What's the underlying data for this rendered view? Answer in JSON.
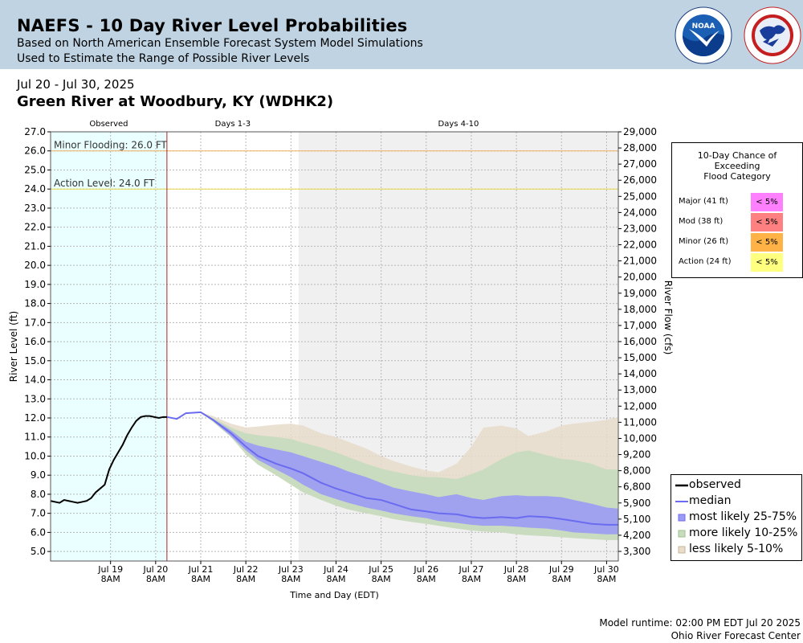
{
  "header": {
    "title": "NAEFS - 10 Day River Level Probabilities",
    "subtitle1": "Based on North American Ensemble Forecast System Model Simulations",
    "subtitle2": "Used to Estimate the Range of Possible River Levels",
    "logos": [
      "noaa-logo",
      "national-weather-service-logo"
    ]
  },
  "date_range": "Jul 20 - Jul 30, 2025",
  "station": "Green River at Woodbury, KY (WDHK2)",
  "footer": {
    "runtime": "Model runtime: 02:00 PM EDT Jul 20 2025",
    "center": "Ohio River Forecast Center"
  },
  "flood_table": {
    "title_lines": [
      "10-Day Chance of",
      "Exceeding",
      "Flood Category"
    ],
    "rows": [
      {
        "label": "Major (41 ft)",
        "value": "< 5%",
        "color": "#ff80ff"
      },
      {
        "label": "Mod (38 ft)",
        "value": "< 5%",
        "color": "#ff8080"
      },
      {
        "label": "Minor (26 ft)",
        "value": "< 5%",
        "color": "#ffb347"
      },
      {
        "label": "Action (24 ft)",
        "value": "< 5%",
        "color": "#ffff80"
      }
    ]
  },
  "legend": {
    "observed": "observed",
    "median": "median",
    "band_25_75": "most likely 25-75%",
    "band_10_25": "more likely 10-25%",
    "band_5_10": "less likely 5-10%"
  },
  "chart_data": {
    "type": "area",
    "title": "",
    "xlabel": "Time and Day (EDT)",
    "ylabel": "River Level (ft)",
    "ylabel_right": "River Flow (cfs)",
    "ylim": [
      4.5,
      27.0
    ],
    "xlim": [
      18.0,
      30.59
    ],
    "x_unit": "day of July 2025 (fractional)",
    "yticks": [
      "5.0",
      "6.0",
      "7.0",
      "8.0",
      "9.0",
      "10.0",
      "11.0",
      "12.0",
      "13.0",
      "14.0",
      "15.0",
      "16.0",
      "17.0",
      "18.0",
      "19.0",
      "20.0",
      "21.0",
      "22.0",
      "23.0",
      "24.0",
      "25.0",
      "26.0",
      "27.0"
    ],
    "yticks_right": [
      "3,300",
      "4,200",
      "5,100",
      "5,900",
      "6,800",
      "8,000",
      "9,200",
      "10,000",
      "11,000",
      "12,000",
      "13,000",
      "14,000",
      "15,000",
      "16,000",
      "17,000",
      "18,000",
      "19,000",
      "20,000",
      "21,000",
      "22,000",
      "23,000",
      "24,000",
      "25,000",
      "26,000",
      "27,000",
      "28,000",
      "29,000"
    ],
    "xticks": [
      {
        "x": 19.33,
        "line1": "Jul 19",
        "line2": "8AM"
      },
      {
        "x": 20.33,
        "line1": "Jul 20",
        "line2": "8AM"
      },
      {
        "x": 21.33,
        "line1": "Jul 21",
        "line2": "8AM"
      },
      {
        "x": 22.33,
        "line1": "Jul 22",
        "line2": "8AM"
      },
      {
        "x": 23.33,
        "line1": "Jul 23",
        "line2": "8AM"
      },
      {
        "x": 24.33,
        "line1": "Jul 24",
        "line2": "8AM"
      },
      {
        "x": 25.33,
        "line1": "Jul 25",
        "line2": "8AM"
      },
      {
        "x": 26.33,
        "line1": "Jul 26",
        "line2": "8AM"
      },
      {
        "x": 27.33,
        "line1": "Jul 27",
        "line2": "8AM"
      },
      {
        "x": 28.33,
        "line1": "Jul 28",
        "line2": "8AM"
      },
      {
        "x": 29.33,
        "line1": "Jul 29",
        "line2": "8AM"
      },
      {
        "x": 30.33,
        "line1": "Jul 30",
        "line2": "8AM"
      }
    ],
    "regions": [
      {
        "label": "Observed",
        "x0": 18.0,
        "x1": 20.58,
        "color": "#eaffff"
      },
      {
        "label": "Days 1-3",
        "x0": 20.58,
        "x1": 23.5,
        "color": "#ffffff"
      },
      {
        "label": "Days 4-10",
        "x0": 23.5,
        "x1": 30.59,
        "color": "#f0f0f0"
      }
    ],
    "forecast_start": 20.58,
    "thresholds": [
      {
        "label": "Minor Flooding: 26.0 FT",
        "value": 26.0,
        "color": "#f0b060"
      },
      {
        "label": "Action Level: 24.0 FT",
        "value": 24.0,
        "color": "#e8d84a"
      }
    ],
    "observed": {
      "x": [
        18.0,
        18.1,
        18.2,
        18.3,
        18.4,
        18.5,
        18.6,
        18.7,
        18.8,
        18.9,
        19.0,
        19.1,
        19.2,
        19.3,
        19.4,
        19.5,
        19.6,
        19.7,
        19.8,
        19.9,
        20.0,
        20.1,
        20.2,
        20.3,
        20.4,
        20.5,
        20.58
      ],
      "y": [
        7.65,
        7.6,
        7.55,
        7.7,
        7.65,
        7.6,
        7.55,
        7.6,
        7.65,
        7.8,
        8.1,
        8.3,
        8.5,
        9.3,
        9.8,
        10.2,
        10.6,
        11.1,
        11.5,
        11.85,
        12.05,
        12.1,
        12.1,
        12.05,
        12.0,
        12.05,
        12.05
      ]
    },
    "series": [
      {
        "name": "median",
        "x": [
          20.58,
          20.8,
          21.0,
          21.33,
          21.6,
          22.0,
          22.33,
          22.6,
          23.0,
          23.33,
          23.6,
          24.0,
          24.33,
          24.6,
          25.0,
          25.33,
          25.6,
          26.0,
          26.33,
          26.6,
          27.0,
          27.33,
          27.6,
          28.0,
          28.33,
          28.6,
          29.0,
          29.33,
          29.6,
          30.0,
          30.33,
          30.59
        ],
        "y": [
          12.05,
          11.95,
          12.25,
          12.3,
          11.9,
          11.2,
          10.5,
          10.0,
          9.6,
          9.35,
          9.1,
          8.6,
          8.3,
          8.1,
          7.8,
          7.7,
          7.5,
          7.2,
          7.1,
          7.0,
          6.95,
          6.8,
          6.75,
          6.8,
          6.75,
          6.85,
          6.8,
          6.7,
          6.6,
          6.45,
          6.4,
          6.4
        ]
      }
    ],
    "bands": [
      {
        "name": "less likely 5-10%",
        "color": "#e8dccb",
        "x": [
          20.58,
          20.8,
          21.0,
          21.33,
          21.6,
          22.0,
          22.33,
          22.6,
          23.0,
          23.33,
          23.6,
          24.0,
          24.33,
          24.6,
          25.0,
          25.33,
          25.6,
          26.0,
          26.33,
          26.6,
          27.0,
          27.33,
          27.6,
          28.0,
          28.33,
          28.6,
          29.0,
          29.33,
          29.6,
          30.0,
          30.33,
          30.59
        ],
        "upper": [
          12.05,
          12.0,
          12.25,
          12.3,
          12.1,
          11.7,
          11.5,
          11.55,
          11.65,
          11.7,
          11.6,
          11.2,
          11.0,
          10.75,
          10.4,
          10.0,
          9.75,
          9.45,
          9.25,
          9.15,
          9.6,
          10.5,
          11.5,
          11.6,
          11.45,
          11.05,
          11.3,
          11.6,
          11.7,
          11.8,
          11.9,
          12.05
        ],
        "lower": [
          12.05,
          11.95,
          12.25,
          12.3,
          11.8,
          11.0,
          10.1,
          9.55,
          9.0,
          8.5,
          8.1,
          7.7,
          7.4,
          7.2,
          7.0,
          6.85,
          6.7,
          6.55,
          6.45,
          6.35,
          6.2,
          6.1,
          6.05,
          6.0,
          5.9,
          5.85,
          5.8,
          5.75,
          5.7,
          5.65,
          5.6,
          5.6
        ]
      },
      {
        "name": "more likely 10-25%",
        "color": "#c6dcbc",
        "x": [
          20.58,
          20.8,
          21.0,
          21.33,
          21.6,
          22.0,
          22.33,
          22.6,
          23.0,
          23.33,
          23.6,
          24.0,
          24.33,
          24.6,
          25.0,
          25.33,
          25.6,
          26.0,
          26.33,
          26.6,
          27.0,
          27.33,
          27.6,
          28.0,
          28.33,
          28.6,
          29.0,
          29.33,
          29.6,
          30.0,
          30.33,
          30.59
        ],
        "upper": [
          12.05,
          11.95,
          12.25,
          12.3,
          12.0,
          11.5,
          11.2,
          11.1,
          11.0,
          10.9,
          10.7,
          10.45,
          10.2,
          9.95,
          9.6,
          9.35,
          9.2,
          9.0,
          8.9,
          8.9,
          8.8,
          9.05,
          9.3,
          9.85,
          10.2,
          10.3,
          10.05,
          9.85,
          9.8,
          9.6,
          9.3,
          9.3
        ]
      },
      {
        "name": "most likely 25-75%",
        "color": "#9b9bf5",
        "x": [
          20.58,
          20.8,
          21.0,
          21.33,
          21.6,
          22.0,
          22.33,
          22.6,
          23.0,
          23.33,
          23.6,
          24.0,
          24.33,
          24.6,
          25.0,
          25.33,
          25.6,
          26.0,
          26.33,
          26.6,
          27.0,
          27.33,
          27.6,
          28.0,
          28.33,
          28.6,
          29.0,
          29.33,
          29.6,
          30.0,
          30.33,
          30.59
        ],
        "upper": [
          12.05,
          11.95,
          12.25,
          12.3,
          11.95,
          11.35,
          10.75,
          10.55,
          10.35,
          10.2,
          10.0,
          9.7,
          9.45,
          9.2,
          8.9,
          8.6,
          8.35,
          8.15,
          8.0,
          7.85,
          8.0,
          7.8,
          7.7,
          7.9,
          7.95,
          7.9,
          7.9,
          7.85,
          7.7,
          7.5,
          7.3,
          7.25
        ],
        "lower": [
          12.05,
          11.95,
          12.25,
          12.3,
          11.85,
          11.05,
          10.3,
          9.8,
          9.3,
          8.9,
          8.5,
          8.0,
          7.75,
          7.55,
          7.3,
          7.15,
          7.0,
          6.85,
          6.75,
          6.6,
          6.5,
          6.4,
          6.35,
          6.35,
          6.3,
          6.25,
          6.2,
          6.1,
          6.0,
          5.95,
          5.9,
          5.9
        ]
      }
    ]
  }
}
